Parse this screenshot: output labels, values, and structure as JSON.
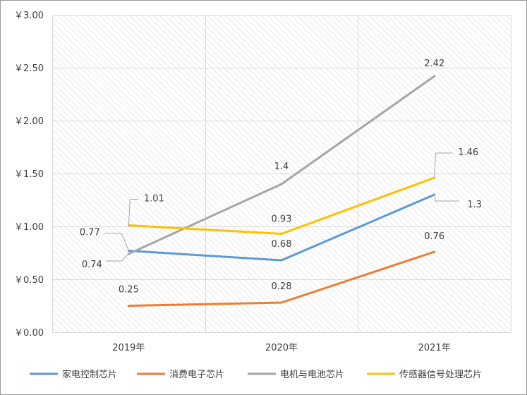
{
  "chart_data": {
    "type": "line",
    "categories": [
      "2019年",
      "2020年",
      "2021年"
    ],
    "y_tick_labels": [
      "￥0.00",
      "￥0.50",
      "￥1.00",
      "￥1.50",
      "￥2.00",
      "￥2.50",
      "￥3.00"
    ],
    "ylim": [
      0,
      3
    ],
    "y_step": 0.5,
    "grid": true,
    "background": "diagonal-hatch",
    "legend_position": "bottom",
    "series": [
      {
        "name": "家电控制芯片",
        "values": [
          0.77,
          0.68,
          1.3
        ],
        "color": "#5b9bd5",
        "labels": [
          "0.77",
          "0.68",
          "1.3"
        ]
      },
      {
        "name": "消费电子芯片",
        "values": [
          0.25,
          0.28,
          0.76
        ],
        "color": "#ed7d31",
        "labels": [
          "0.25",
          "0.28",
          "0.76"
        ]
      },
      {
        "name": "电机与电池芯片",
        "values": [
          0.74,
          1.4,
          2.42
        ],
        "color": "#a5a5a5",
        "labels": [
          "0.74",
          "1.4",
          "2.42"
        ]
      },
      {
        "name": "传感器信号处理芯片",
        "values": [
          1.01,
          0.93,
          1.46
        ],
        "color": "#ffc000",
        "labels": [
          "1.01",
          "0.93",
          "1.46"
        ]
      }
    ]
  }
}
